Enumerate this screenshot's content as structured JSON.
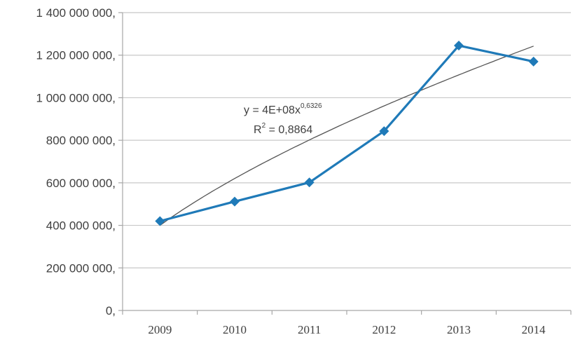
{
  "chart_data": {
    "type": "line",
    "categories": [
      "2009",
      "2010",
      "2011",
      "2012",
      "2013",
      "2014"
    ],
    "series": [
      {
        "values": [
          420000000,
          512000000,
          602000000,
          843000000,
          1245000000,
          1170000000
        ],
        "color": "#1f7ab8",
        "marker": "diamond"
      }
    ],
    "trendline": {
      "type": "power",
      "coefficient": 400000000,
      "exponent": 0.6326,
      "color": "#555555",
      "equation_lines": [
        "y = 4E+08x",
        "0,6326",
        "R",
        "2",
        " = 0,8864"
      ]
    },
    "ylim": [
      0,
      1400000000
    ],
    "y_ticks": [
      0,
      200000000,
      400000000,
      600000000,
      800000000,
      1000000000,
      1200000000,
      1400000000
    ],
    "y_tick_labels": [
      "0,",
      "200 000 000,",
      "400 000 000,",
      "600 000 000,",
      "800 000 000,",
      "1 000 000 000,",
      "1 200 000 000,",
      "1 400 000 000,"
    ],
    "grid": "horizontal",
    "legend": "none",
    "colors": {
      "grid": "#c8c8c8",
      "axis": "#a6a6a6"
    }
  }
}
